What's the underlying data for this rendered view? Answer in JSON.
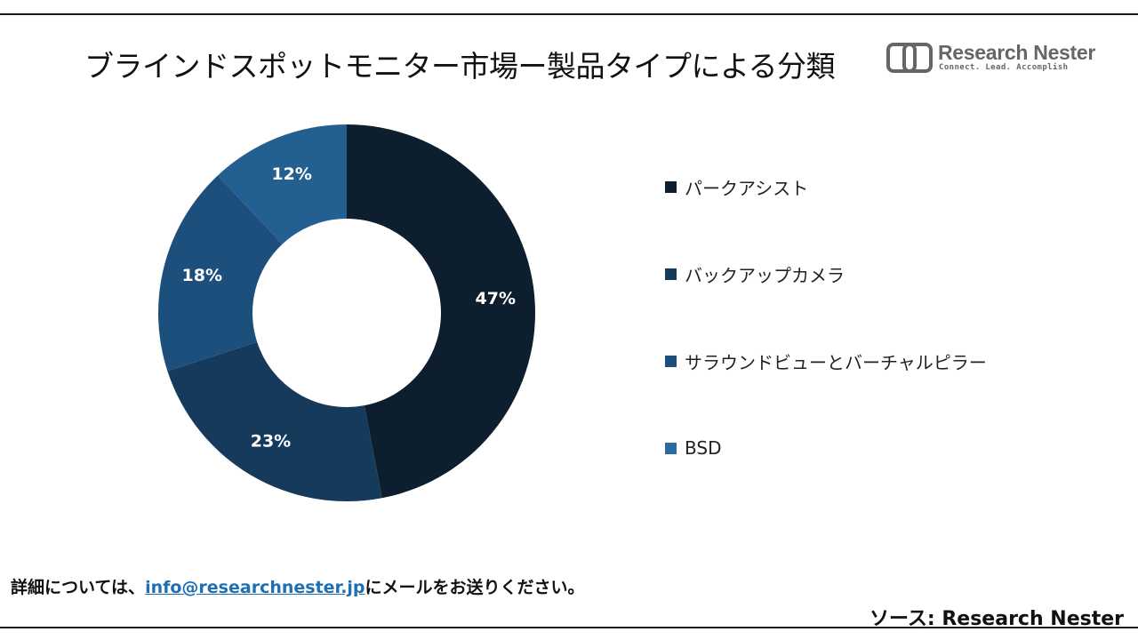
{
  "title": "ブラインドスポットモニター市場ー製品タイプによる分類",
  "logo": {
    "name": "Research Nester",
    "tagline": "Connect. Lead. Accomplish",
    "icon": "research-nester-logo-icon"
  },
  "chart_data": {
    "type": "pie",
    "variant": "donut",
    "categories": [
      "パークアシスト",
      "バックアップカメラ",
      "サラウンドビューとバーチャルピラー",
      "BSD"
    ],
    "values": [
      47,
      23,
      18,
      12
    ],
    "labels": [
      "47%",
      "23%",
      "18%",
      "12%"
    ],
    "unit": "%",
    "colors": [
      "#0d1f2e",
      "#153a5c",
      "#1c4f7c",
      "#235f91"
    ],
    "legend_colors": [
      "#0d1f2e",
      "#153a5c",
      "#1c4f7c",
      "#2a6a9f"
    ],
    "legend_position": "right"
  },
  "footer": {
    "contact_prefix": "詳細については、",
    "contact_email": "info@researchnester.jp",
    "contact_suffix": "にメールをお送りください。",
    "source": "ソース: Research Nester"
  }
}
